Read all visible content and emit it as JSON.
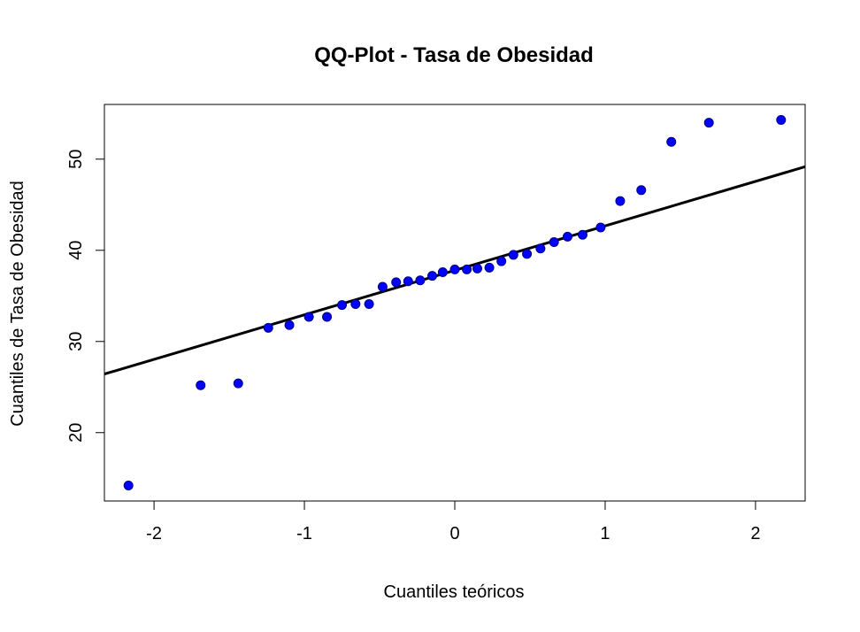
{
  "chart_data": {
    "type": "scatter",
    "title": "QQ-Plot - Tasa de Obesidad",
    "xlabel": "Cuantiles teóricos",
    "ylabel": "Cuantiles de Tasa de Obesidad",
    "xlim": [
      -2.33,
      2.33
    ],
    "ylim": [
      12.5,
      56.0
    ],
    "xticks": [
      -2,
      -1,
      0,
      1,
      2
    ],
    "yticks": [
      20,
      30,
      40,
      50
    ],
    "grid": false,
    "legend": "none",
    "point_color": "#0000ff",
    "point_outline": "#000080",
    "line_color": "#000000",
    "reference_line": {
      "intercept": 37.8,
      "slope": 4.88
    },
    "points": [
      {
        "x": -2.17,
        "y": 14.2
      },
      {
        "x": -1.69,
        "y": 25.2
      },
      {
        "x": -1.44,
        "y": 25.4
      },
      {
        "x": -1.24,
        "y": 31.5
      },
      {
        "x": -1.1,
        "y": 31.8
      },
      {
        "x": -0.97,
        "y": 32.7
      },
      {
        "x": -0.85,
        "y": 32.7
      },
      {
        "x": -0.75,
        "y": 34.0
      },
      {
        "x": -0.66,
        "y": 34.1
      },
      {
        "x": -0.57,
        "y": 34.1
      },
      {
        "x": -0.48,
        "y": 36.0
      },
      {
        "x": -0.39,
        "y": 36.5
      },
      {
        "x": -0.31,
        "y": 36.6
      },
      {
        "x": -0.23,
        "y": 36.7
      },
      {
        "x": -0.15,
        "y": 37.2
      },
      {
        "x": -0.08,
        "y": 37.6
      },
      {
        "x": 0.0,
        "y": 37.9
      },
      {
        "x": 0.08,
        "y": 37.9
      },
      {
        "x": 0.15,
        "y": 38.0
      },
      {
        "x": 0.23,
        "y": 38.1
      },
      {
        "x": 0.31,
        "y": 38.8
      },
      {
        "x": 0.39,
        "y": 39.5
      },
      {
        "x": 0.48,
        "y": 39.6
      },
      {
        "x": 0.57,
        "y": 40.2
      },
      {
        "x": 0.66,
        "y": 40.9
      },
      {
        "x": 0.75,
        "y": 41.5
      },
      {
        "x": 0.85,
        "y": 41.7
      },
      {
        "x": 0.97,
        "y": 42.5
      },
      {
        "x": 1.1,
        "y": 45.4
      },
      {
        "x": 1.24,
        "y": 46.6
      },
      {
        "x": 1.44,
        "y": 51.9
      },
      {
        "x": 1.69,
        "y": 54.0
      },
      {
        "x": 2.17,
        "y": 54.3
      }
    ]
  }
}
